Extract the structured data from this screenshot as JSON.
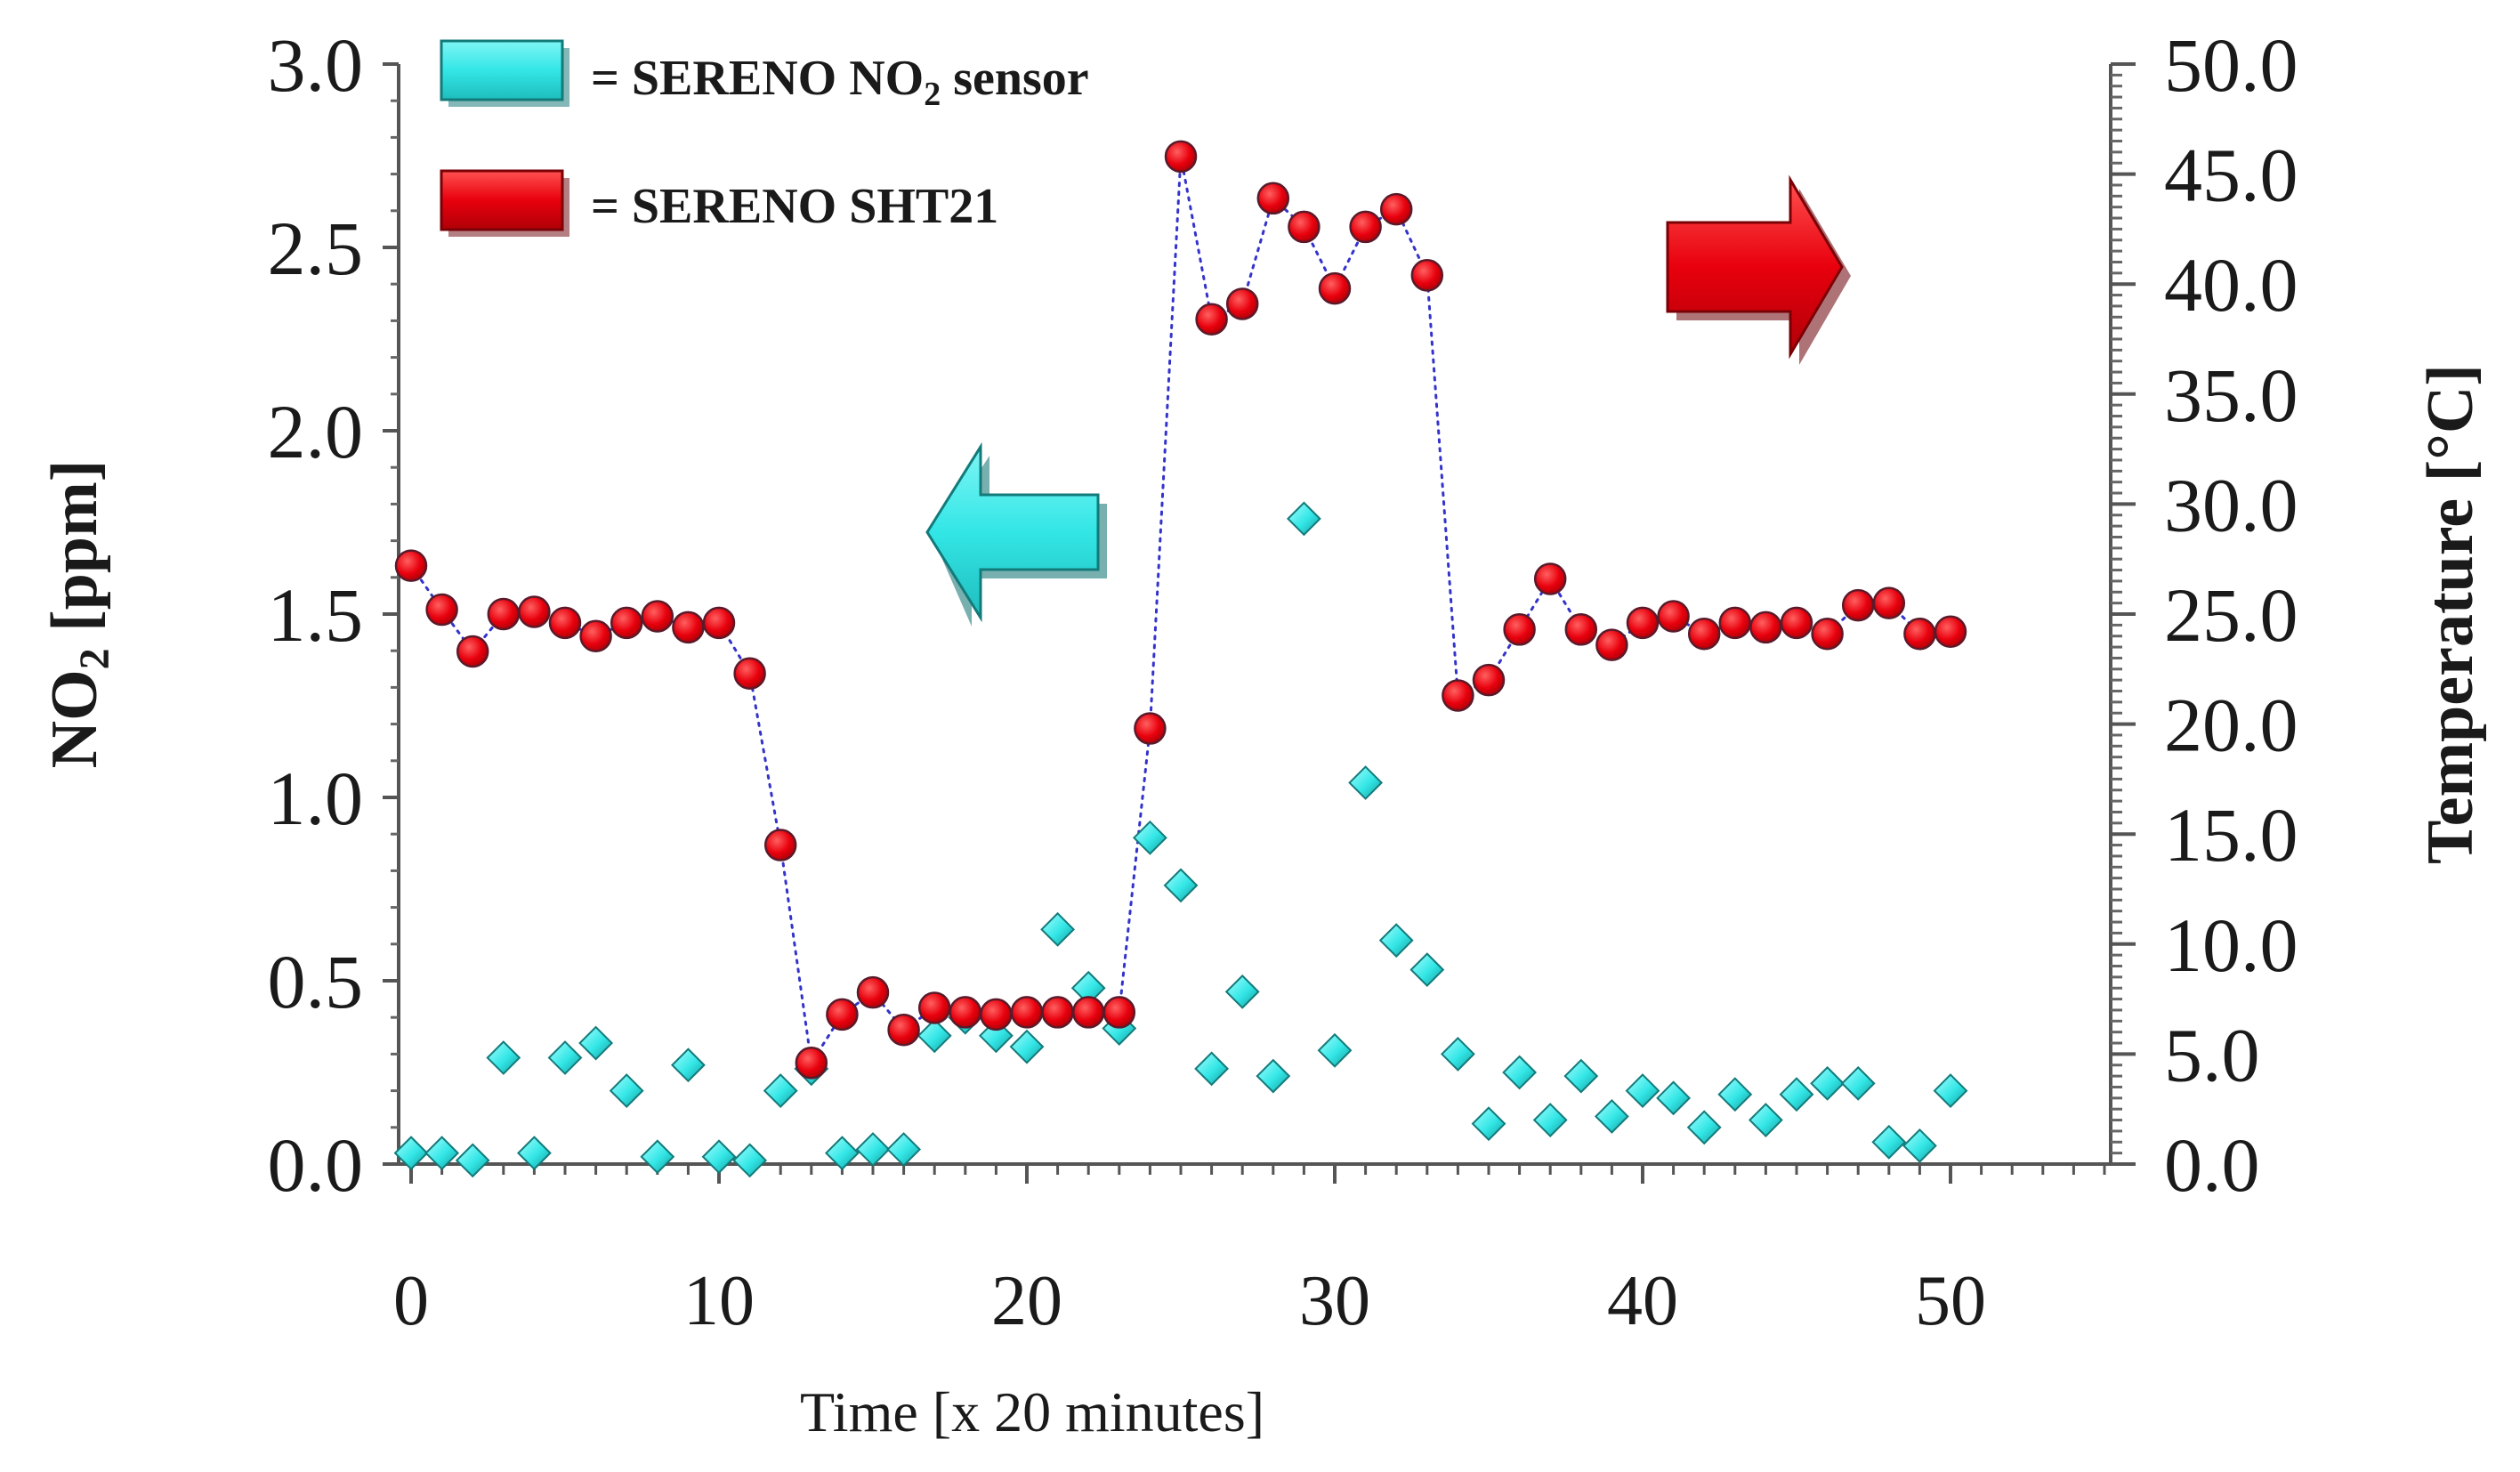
{
  "chart_data": {
    "type": "scatter",
    "x": [
      0,
      1,
      2,
      3,
      4,
      5,
      6,
      7,
      8,
      9,
      10,
      11,
      12,
      13,
      14,
      15,
      16,
      17,
      18,
      19,
      20,
      21,
      22,
      23,
      24,
      25,
      26,
      27,
      28,
      29,
      30,
      31,
      32,
      33,
      34,
      35,
      36,
      37,
      38,
      39,
      40,
      41,
      42,
      43,
      44,
      45,
      46,
      47,
      48,
      49,
      50
    ],
    "xlabel": "Time [x 20 minutes]",
    "xlim": [
      0,
      55
    ],
    "xticks": [
      "0",
      "10",
      "20",
      "30",
      "40",
      "50"
    ],
    "left_axis": {
      "label_main": "NO",
      "label_sub": "2",
      "label_rest": " [ppm]",
      "ylim": [
        0,
        3
      ],
      "ticks": [
        "0.0",
        "0.5",
        "1.0",
        "1.5",
        "2.0",
        "2.5",
        "3.0"
      ]
    },
    "right_axis": {
      "label": "Temperature [°C]",
      "ylim": [
        0,
        50
      ],
      "ticks": [
        "0.0",
        "5.0",
        "10.0",
        "15.0",
        "20.0",
        "25.0",
        "30.0",
        "35.0",
        "40.0",
        "45.0",
        "50.0"
      ]
    },
    "series": [
      {
        "name": "SERENO NO2 sensor",
        "axis": "left",
        "marker": "diamond",
        "color": "#33e6e6",
        "values": [
          0.03,
          0.03,
          0.01,
          0.29,
          0.03,
          0.29,
          0.33,
          0.2,
          0.02,
          0.27,
          0.02,
          0.01,
          0.2,
          0.26,
          0.03,
          0.04,
          0.04,
          0.35,
          0.4,
          0.35,
          0.32,
          0.64,
          0.48,
          0.37,
          0.89,
          0.76,
          0.26,
          0.47,
          0.24,
          1.76,
          0.31,
          1.04,
          0.61,
          0.53,
          0.3,
          0.11,
          0.25,
          0.12,
          0.24,
          0.13,
          0.2,
          0.18,
          0.1,
          0.19,
          0.12,
          0.19,
          0.22,
          0.22,
          0.06,
          0.05,
          0.2
        ]
      },
      {
        "name": "SERENO SHT21",
        "axis": "right",
        "marker": "circle",
        "color": "#e8000d",
        "values": [
          27.2,
          25.2,
          23.3,
          25,
          25.1,
          24.6,
          24,
          24.6,
          24.9,
          24.4,
          24.6,
          22.3,
          14.5,
          4.6,
          6.8,
          7.8,
          6.1,
          7.1,
          6.9,
          6.8,
          6.9,
          6.9,
          6.9,
          6.9,
          19.8,
          45.8,
          38.4,
          39.1,
          43.9,
          42.6,
          39.8,
          42.6,
          43.4,
          40.4,
          21.3,
          22,
          24.3,
          26.6,
          24.3,
          23.6,
          24.6,
          24.9,
          24.1,
          24.6,
          24.4,
          24.6,
          24.1,
          25.4,
          25.5,
          24.1,
          24.2
        ]
      }
    ],
    "legend": [
      {
        "prefix": "= SERENO  NO",
        "sub": "2",
        "suffix": "  sensor",
        "color": "#33e6e6"
      },
      {
        "prefix": "= SERENO SHT21",
        "sub": "",
        "suffix": "",
        "color": "#e8000d"
      }
    ],
    "annotations": [
      {
        "kind": "arrow-left",
        "meaning": "NO2 series uses left axis",
        "color": "#33e6e6"
      },
      {
        "kind": "arrow-right",
        "meaning": "temperature series uses right axis",
        "color": "#e8000d"
      }
    ]
  }
}
